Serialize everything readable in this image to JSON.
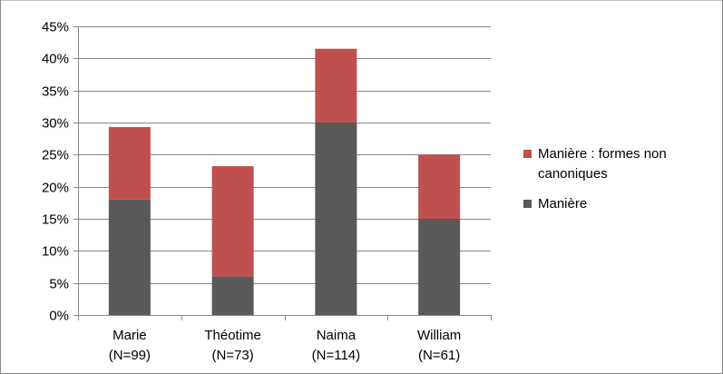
{
  "chart_data": {
    "type": "bar",
    "stacked": true,
    "categories": [
      "Marie",
      "Théotime",
      "Naima",
      "William"
    ],
    "category_sublabels": [
      "(N=99)",
      "(N=73)",
      "(N=114)",
      "(N=61)"
    ],
    "series": [
      {
        "name": "Manière",
        "color": "#595959",
        "values": [
          18,
          6,
          30,
          15
        ]
      },
      {
        "name": "Manière : formes non canoniques",
        "color": "#c0504d",
        "values": [
          11.3,
          17.2,
          11.5,
          10
        ]
      }
    ],
    "title": "",
    "xlabel": "",
    "ylabel": "",
    "ylim": [
      0,
      45
    ],
    "yticks": [
      "0%",
      "5%",
      "10%",
      "15%",
      "20%",
      "25%",
      "30%",
      "35%",
      "40%",
      "45%"
    ],
    "grid": true,
    "legend": {
      "placement": "right",
      "entries": [
        {
          "lines": [
            "Manière : formes non",
            "canoniques"
          ],
          "color": "#c0504d"
        },
        {
          "lines": [
            "Manière"
          ],
          "color": "#595959"
        }
      ]
    }
  }
}
